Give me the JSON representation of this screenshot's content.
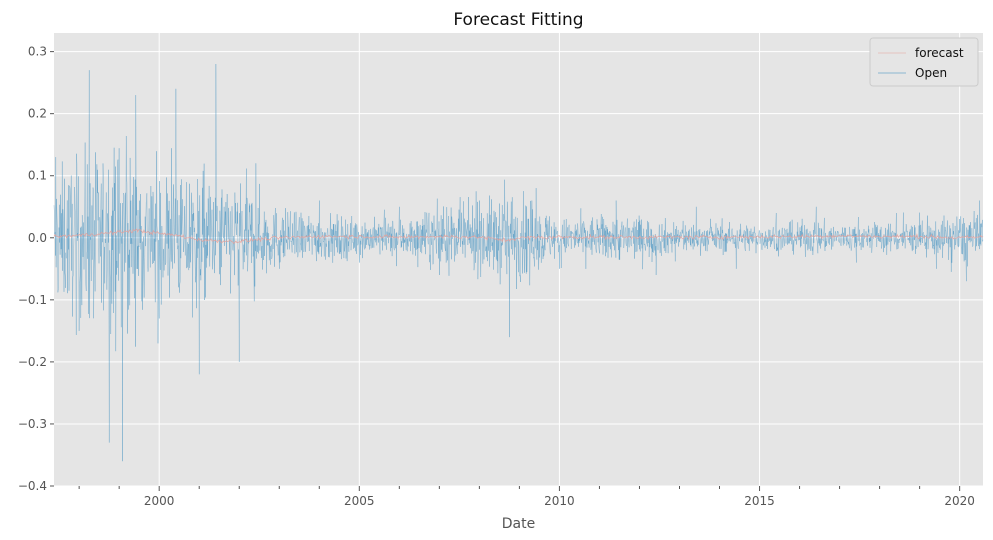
{
  "chart_data": {
    "type": "line",
    "title": "Forecast Fitting",
    "xlabel": "Date",
    "ylabel": "",
    "xlim": [
      "1997-05-15",
      "2020-08-01"
    ],
    "ylim": [
      -0.4,
      0.33
    ],
    "x_ticks": [
      "2000",
      "2005",
      "2010",
      "2015",
      "2020"
    ],
    "y_ticks": [
      "0.3",
      "0.2",
      "0.1",
      "0.0",
      "−0.1",
      "−0.2",
      "−0.3",
      "−0.4"
    ],
    "grid": true,
    "legend_position": "top-right",
    "series": [
      {
        "name": "forecast",
        "color": "#e5a09a",
        "x": [
          "1997-06",
          "1998-01",
          "1998-06",
          "1999-01",
          "1999-06",
          "2000-01",
          "2000-06",
          "2001-01",
          "2001-06",
          "2002-01",
          "2002-06",
          "2003-01",
          "2004-01",
          "2005-01",
          "2006-01",
          "2007-01",
          "2008-01",
          "2008-09",
          "2009-01",
          "2010-01",
          "2012-01",
          "2014-01",
          "2016-01",
          "2017-01",
          "2018-01",
          "2019-01",
          "2020-01",
          "2020-07"
        ],
        "values": [
          0.002,
          0.004,
          0.006,
          0.009,
          0.012,
          0.007,
          0.004,
          -0.003,
          -0.005,
          -0.006,
          -0.003,
          0.0,
          0.002,
          0.002,
          0.001,
          0.002,
          0.001,
          -0.004,
          0.0,
          0.001,
          0.001,
          0.001,
          0.002,
          0.003,
          0.002,
          0.002,
          0.0,
          0.001
        ]
      },
      {
        "name": "Open",
        "color": "#348abd",
        "x": [
          "1997-06",
          "1998-01",
          "1998-04",
          "1998-10",
          "1999-02",
          "1999-06",
          "2000-01",
          "2000-06",
          "2001-01",
          "2001-06",
          "2002-01",
          "2002-06",
          "2003-01",
          "2004-01",
          "2005-01",
          "2006-01",
          "2007-01",
          "2008-01",
          "2008-10",
          "2009-06",
          "2010-01",
          "2011-06",
          "2012-06",
          "2013-06",
          "2014-06",
          "2015-06",
          "2016-06",
          "2017-06",
          "2018-06",
          "2019-06",
          "2020-03",
          "2020-07"
        ],
        "values": [
          0.13,
          -0.15,
          0.27,
          -0.33,
          -0.36,
          0.23,
          -0.13,
          0.24,
          -0.22,
          0.28,
          -0.2,
          0.12,
          -0.05,
          0.06,
          -0.04,
          0.05,
          -0.06,
          0.06,
          -0.16,
          0.08,
          -0.05,
          0.06,
          -0.06,
          0.05,
          -0.05,
          0.04,
          0.05,
          -0.04,
          0.04,
          -0.05,
          -0.07,
          0.06
        ],
        "volatility": [
          0.07,
          0.08,
          0.09,
          0.09,
          0.1,
          0.08,
          0.07,
          0.07,
          0.07,
          0.06,
          0.06,
          0.05,
          0.03,
          0.025,
          0.02,
          0.02,
          0.03,
          0.035,
          0.05,
          0.035,
          0.02,
          0.025,
          0.02,
          0.015,
          0.015,
          0.015,
          0.018,
          0.015,
          0.016,
          0.018,
          0.03,
          0.025
        ]
      }
    ]
  }
}
